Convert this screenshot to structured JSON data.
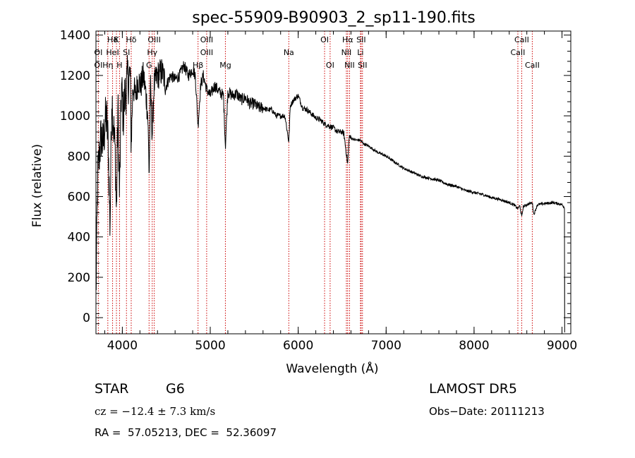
{
  "chart_data": {
    "type": "line",
    "title": "spec-55909-B90903_2_sp11-190.fits",
    "xlabel": "Wavelength (Å)",
    "ylabel": "Flux (relative)",
    "xlim": [
      3700,
      9100
    ],
    "ylim": [
      -80,
      1420
    ],
    "xticks": [
      4000,
      5000,
      6000,
      7000,
      8000,
      9000
    ],
    "yticks": [
      0,
      200,
      400,
      600,
      800,
      1000,
      1200,
      1400
    ],
    "line_color": "#000000",
    "marker_color": "#cc0000",
    "x": [
      3700,
      3720,
      3740,
      3760,
      3780,
      3800,
      3820,
      3840,
      3860,
      3880,
      3900,
      3920,
      3933,
      3950,
      3968,
      3990,
      4010,
      4030,
      4060,
      4090,
      4101,
      4120,
      4150,
      4180,
      4210,
      4240,
      4270,
      4290,
      4305,
      4320,
      4340,
      4360,
      4400,
      4450,
      4500,
      4550,
      4600,
      4650,
      4700,
      4750,
      4800,
      4830,
      4861,
      4890,
      4920,
      4960,
      5000,
      5050,
      5100,
      5150,
      5172,
      5200,
      5250,
      5300,
      5350,
      5400,
      5450,
      5500,
      5550,
      5600,
      5650,
      5700,
      5750,
      5800,
      5850,
      5893,
      5910,
      5950,
      6000,
      6050,
      6100,
      6150,
      6200,
      6250,
      6300,
      6350,
      6400,
      6450,
      6500,
      6520,
      6563,
      6580,
      6600,
      6650,
      6700,
      6750,
      6800,
      6900,
      7000,
      7100,
      7200,
      7300,
      7400,
      7500,
      7600,
      7700,
      7800,
      7900,
      8000,
      8100,
      8200,
      8300,
      8400,
      8450,
      8498,
      8520,
      8542,
      8560,
      8600,
      8662,
      8680,
      8720,
      8800,
      8900,
      9000,
      9030
    ],
    "y": [
      100,
      700,
      820,
      900,
      850,
      950,
      1000,
      850,
      450,
      1100,
      950,
      800,
      500,
      1050,
      600,
      1150,
      1000,
      1100,
      1180,
      1200,
      850,
      1150,
      1100,
      1180,
      1150,
      1200,
      1100,
      1000,
      700,
      1150,
      900,
      1150,
      1200,
      1220,
      1150,
      1200,
      1180,
      1200,
      1250,
      1200,
      1230,
      1200,
      950,
      1150,
      1200,
      1130,
      1100,
      1150,
      1120,
      1100,
      850,
      1120,
      1100,
      1110,
      1080,
      1090,
      1060,
      1060,
      1040,
      1040,
      1030,
      1030,
      1000,
      1000,
      1000,
      870,
      1050,
      1080,
      1100,
      1040,
      1030,
      1010,
      990,
      980,
      960,
      950,
      940,
      920,
      920,
      910,
      760,
      900,
      890,
      880,
      880,
      860,
      850,
      820,
      800,
      770,
      740,
      720,
      700,
      690,
      680,
      660,
      650,
      630,
      620,
      610,
      595,
      585,
      570,
      560,
      540,
      555,
      500,
      550,
      560,
      570,
      510,
      560,
      565,
      570,
      560,
      545
    ],
    "lines": [
      {
        "label": "Hδ",
        "x": 3889,
        "row": 0
      },
      {
        "label": "K",
        "x": 3933,
        "row": 0
      },
      {
        "label": "Hδ",
        "x": 4101,
        "row": 0
      },
      {
        "label": "OIII",
        "x": 4363,
        "row": 0
      },
      {
        "label": "OIII",
        "x": 4959,
        "row": 0
      },
      {
        "label": "OI",
        "x": 6300,
        "row": 0
      },
      {
        "label": "Hα",
        "x": 6563,
        "row": 0
      },
      {
        "label": "SII",
        "x": 6716,
        "row": 0
      },
      {
        "label": "CaII",
        "x": 8542,
        "row": 0
      },
      {
        "label": "OI",
        "x": 3727,
        "row": 1
      },
      {
        "label": "HeI",
        "x": 3889,
        "row": 1
      },
      {
        "label": "SI",
        "x": 4047,
        "row": 1
      },
      {
        "label": "Hγ",
        "x": 4340,
        "row": 1
      },
      {
        "label": "OIII",
        "x": 4959,
        "row": 1
      },
      {
        "label": "Na",
        "x": 5893,
        "row": 1
      },
      {
        "label": "NII",
        "x": 6548,
        "row": 1
      },
      {
        "label": "Li",
        "x": 6708,
        "row": 1
      },
      {
        "label": "CaII",
        "x": 8498,
        "row": 1
      },
      {
        "label": "OI",
        "x": 3727,
        "row": 2
      },
      {
        "label": "Hη",
        "x": 3835,
        "row": 2
      },
      {
        "label": "H",
        "x": 3968,
        "row": 2
      },
      {
        "label": "G",
        "x": 4304,
        "row": 2
      },
      {
        "label": "Hβ",
        "x": 4861,
        "row": 2
      },
      {
        "label": "Mg",
        "x": 5172,
        "row": 2
      },
      {
        "label": "OI",
        "x": 6363,
        "row": 2
      },
      {
        "label": "NII",
        "x": 6584,
        "row": 2
      },
      {
        "label": "SII",
        "x": 6731,
        "row": 2
      },
      {
        "label": "CaII",
        "x": 8662,
        "row": 2
      }
    ]
  },
  "info": {
    "class_label": "STAR",
    "subclass": "G6",
    "survey": "LAMOST DR5",
    "cz": "cz = −12.4 ± 7.3 km/s",
    "obs_date": "Obs−Date: 20111213",
    "radec": "RA =  57.05213, DEC =  52.36097"
  }
}
